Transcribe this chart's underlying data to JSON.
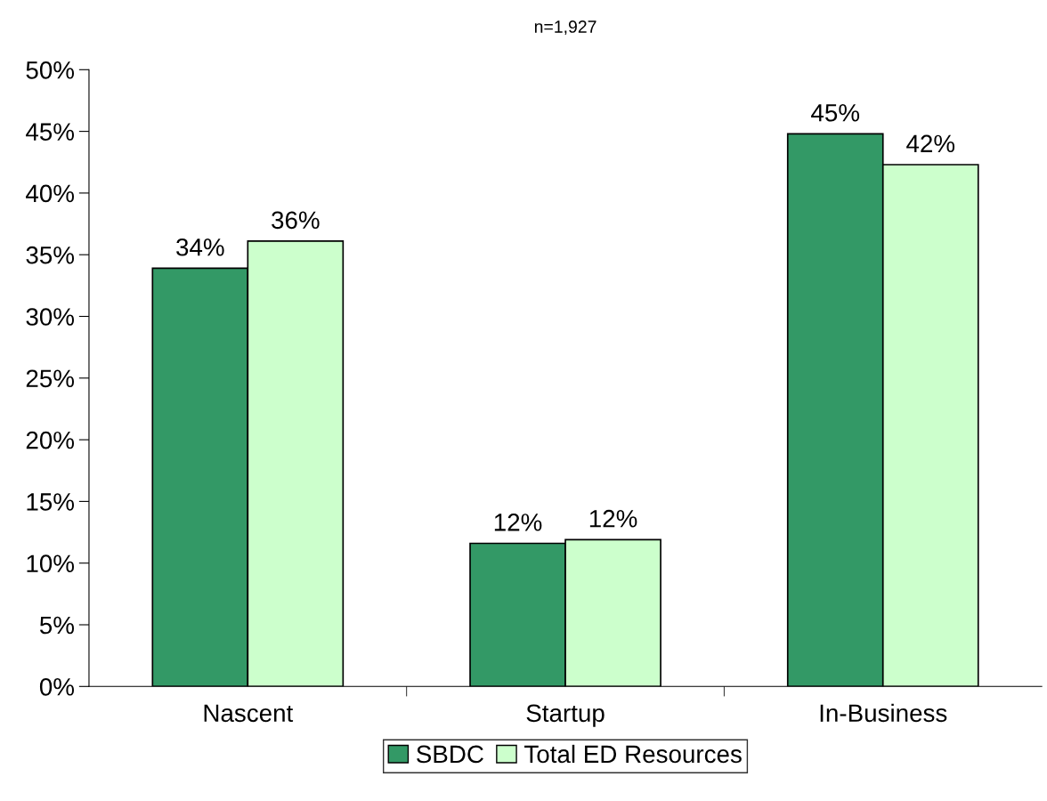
{
  "chart_data": {
    "type": "bar",
    "title": "n=1,927",
    "categories": [
      "Nascent",
      "Startup",
      "In-Business"
    ],
    "series": [
      {
        "name": "SBDC",
        "color": "#339966",
        "values": [
          33.9,
          11.6,
          44.8
        ],
        "value_labels": [
          "34%",
          "12%",
          "45%"
        ]
      },
      {
        "name": "Total ED Resources",
        "color": "#ccffcc",
        "values": [
          36.1,
          11.9,
          42.3
        ],
        "value_labels": [
          "36%",
          "12%",
          "42%"
        ]
      }
    ],
    "ylim": [
      0,
      50
    ],
    "yticks": [
      {
        "value": 0,
        "label": "0%"
      },
      {
        "value": 5,
        "label": "5%"
      },
      {
        "value": 10,
        "label": "10%"
      },
      {
        "value": 15,
        "label": "15%"
      },
      {
        "value": 20,
        "label": "20%"
      },
      {
        "value": 25,
        "label": "25%"
      },
      {
        "value": 30,
        "label": "30%"
      },
      {
        "value": 35,
        "label": "35%"
      },
      {
        "value": 40,
        "label": "40%"
      },
      {
        "value": 45,
        "label": "45%"
      },
      {
        "value": 50,
        "label": "50%"
      }
    ],
    "grid": false,
    "legend": "bottom"
  }
}
